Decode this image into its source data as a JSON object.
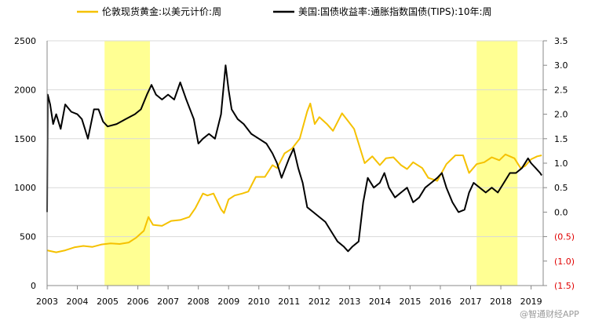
{
  "chart_data": {
    "type": "line",
    "title": "",
    "legend_placement": "top",
    "xlabel": "",
    "ylabel_left": "",
    "ylabel_right": "",
    "x_range": [
      2003,
      2019.4
    ],
    "y_left_range": [
      0,
      2500
    ],
    "y_right_range": [
      -1.5,
      3.5
    ],
    "x_tick_labels": [
      "2003",
      "2004",
      "2005",
      "2006",
      "2007",
      "2008",
      "2009",
      "2010",
      "2011",
      "2012",
      "2013",
      "2014",
      "2015",
      "2016",
      "2017",
      "2018",
      "2019"
    ],
    "y_left_tick_labels": [
      "0",
      "500",
      "1000",
      "1500",
      "2000",
      "2500"
    ],
    "y_right_tick_labels": [
      "(1.5)",
      "(1.0)",
      "(0.5)",
      "0.0",
      "0.5",
      "1.0",
      "1.5",
      "2.0",
      "2.5",
      "3.0",
      "3.5"
    ],
    "y_right_tick_values": [
      -1.5,
      -1.0,
      -0.5,
      0.0,
      0.5,
      1.0,
      1.5,
      2.0,
      2.5,
      3.0,
      3.5
    ],
    "shaded_periods": [
      {
        "start": 2004.9,
        "end": 2006.4
      },
      {
        "start": 2017.2,
        "end": 2018.55
      }
    ],
    "series": [
      {
        "name": "伦敦现货黄金:以美元计价:周",
        "axis": "left",
        "color": "#f5c100",
        "points": [
          [
            2003.0,
            360
          ],
          [
            2003.3,
            340
          ],
          [
            2003.6,
            360
          ],
          [
            2003.9,
            390
          ],
          [
            2004.2,
            405
          ],
          [
            2004.5,
            395
          ],
          [
            2004.8,
            420
          ],
          [
            2005.1,
            430
          ],
          [
            2005.4,
            425
          ],
          [
            2005.7,
            440
          ],
          [
            2005.95,
            490
          ],
          [
            2006.2,
            560
          ],
          [
            2006.35,
            700
          ],
          [
            2006.5,
            620
          ],
          [
            2006.8,
            610
          ],
          [
            2007.1,
            660
          ],
          [
            2007.4,
            670
          ],
          [
            2007.7,
            700
          ],
          [
            2007.9,
            790
          ],
          [
            2008.15,
            940
          ],
          [
            2008.3,
            920
          ],
          [
            2008.5,
            940
          ],
          [
            2008.75,
            780
          ],
          [
            2008.85,
            740
          ],
          [
            2009.0,
            880
          ],
          [
            2009.2,
            920
          ],
          [
            2009.45,
            940
          ],
          [
            2009.65,
            960
          ],
          [
            2009.9,
            1110
          ],
          [
            2010.2,
            1110
          ],
          [
            2010.45,
            1230
          ],
          [
            2010.6,
            1200
          ],
          [
            2010.85,
            1350
          ],
          [
            2011.1,
            1400
          ],
          [
            2011.35,
            1500
          ],
          [
            2011.6,
            1780
          ],
          [
            2011.7,
            1860
          ],
          [
            2011.85,
            1650
          ],
          [
            2012.0,
            1720
          ],
          [
            2012.25,
            1650
          ],
          [
            2012.45,
            1580
          ],
          [
            2012.75,
            1760
          ],
          [
            2012.95,
            1680
          ],
          [
            2013.15,
            1600
          ],
          [
            2013.3,
            1450
          ],
          [
            2013.5,
            1250
          ],
          [
            2013.75,
            1320
          ],
          [
            2014.0,
            1230
          ],
          [
            2014.2,
            1300
          ],
          [
            2014.45,
            1310
          ],
          [
            2014.7,
            1230
          ],
          [
            2014.9,
            1190
          ],
          [
            2015.1,
            1260
          ],
          [
            2015.4,
            1200
          ],
          [
            2015.6,
            1100
          ],
          [
            2015.9,
            1070
          ],
          [
            2016.2,
            1240
          ],
          [
            2016.5,
            1330
          ],
          [
            2016.75,
            1330
          ],
          [
            2016.95,
            1150
          ],
          [
            2017.2,
            1240
          ],
          [
            2017.45,
            1260
          ],
          [
            2017.7,
            1310
          ],
          [
            2017.95,
            1280
          ],
          [
            2018.15,
            1340
          ],
          [
            2018.45,
            1300
          ],
          [
            2018.65,
            1200
          ],
          [
            2018.8,
            1220
          ],
          [
            2019.0,
            1290
          ],
          [
            2019.2,
            1320
          ],
          [
            2019.35,
            1330
          ]
        ]
      },
      {
        "name": "美国:国债收益率:通胀指数国债(TIPS):10年:周",
        "axis": "right",
        "color": "#000000",
        "points": [
          [
            2003.0,
            0.0
          ],
          [
            2003.02,
            2.4
          ],
          [
            2003.1,
            2.2
          ],
          [
            2003.2,
            1.8
          ],
          [
            2003.3,
            2.0
          ],
          [
            2003.45,
            1.7
          ],
          [
            2003.6,
            2.2
          ],
          [
            2003.8,
            2.05
          ],
          [
            2004.0,
            2.0
          ],
          [
            2004.15,
            1.9
          ],
          [
            2004.25,
            1.7
          ],
          [
            2004.35,
            1.5
          ],
          [
            2004.55,
            2.1
          ],
          [
            2004.7,
            2.1
          ],
          [
            2004.85,
            1.85
          ],
          [
            2005.0,
            1.75
          ],
          [
            2005.3,
            1.8
          ],
          [
            2005.6,
            1.9
          ],
          [
            2005.9,
            2.0
          ],
          [
            2006.1,
            2.1
          ],
          [
            2006.3,
            2.4
          ],
          [
            2006.45,
            2.6
          ],
          [
            2006.6,
            2.4
          ],
          [
            2006.8,
            2.3
          ],
          [
            2007.0,
            2.4
          ],
          [
            2007.2,
            2.3
          ],
          [
            2007.4,
            2.65
          ],
          [
            2007.6,
            2.3
          ],
          [
            2007.85,
            1.9
          ],
          [
            2008.0,
            1.4
          ],
          [
            2008.15,
            1.5
          ],
          [
            2008.35,
            1.6
          ],
          [
            2008.55,
            1.5
          ],
          [
            2008.75,
            2.0
          ],
          [
            2008.9,
            3.0
          ],
          [
            2009.0,
            2.5
          ],
          [
            2009.1,
            2.1
          ],
          [
            2009.3,
            1.9
          ],
          [
            2009.5,
            1.8
          ],
          [
            2009.75,
            1.6
          ],
          [
            2010.0,
            1.5
          ],
          [
            2010.25,
            1.4
          ],
          [
            2010.45,
            1.2
          ],
          [
            2010.6,
            1.0
          ],
          [
            2010.75,
            0.7
          ],
          [
            2011.0,
            1.1
          ],
          [
            2011.15,
            1.3
          ],
          [
            2011.3,
            0.9
          ],
          [
            2011.45,
            0.6
          ],
          [
            2011.6,
            0.1
          ],
          [
            2011.8,
            0.0
          ],
          [
            2012.0,
            -0.1
          ],
          [
            2012.2,
            -0.2
          ],
          [
            2012.4,
            -0.4
          ],
          [
            2012.6,
            -0.6
          ],
          [
            2012.8,
            -0.7
          ],
          [
            2012.95,
            -0.8
          ],
          [
            2013.1,
            -0.7
          ],
          [
            2013.3,
            -0.6
          ],
          [
            2013.45,
            0.2
          ],
          [
            2013.6,
            0.7
          ],
          [
            2013.8,
            0.5
          ],
          [
            2014.0,
            0.6
          ],
          [
            2014.15,
            0.8
          ],
          [
            2014.3,
            0.5
          ],
          [
            2014.5,
            0.3
          ],
          [
            2014.7,
            0.4
          ],
          [
            2014.9,
            0.5
          ],
          [
            2015.1,
            0.2
          ],
          [
            2015.3,
            0.3
          ],
          [
            2015.5,
            0.5
          ],
          [
            2015.7,
            0.6
          ],
          [
            2015.9,
            0.7
          ],
          [
            2016.05,
            0.8
          ],
          [
            2016.2,
            0.5
          ],
          [
            2016.4,
            0.2
          ],
          [
            2016.6,
            0.0
          ],
          [
            2016.8,
            0.05
          ],
          [
            2016.95,
            0.4
          ],
          [
            2017.1,
            0.6
          ],
          [
            2017.3,
            0.5
          ],
          [
            2017.5,
            0.4
          ],
          [
            2017.7,
            0.5
          ],
          [
            2017.9,
            0.4
          ],
          [
            2018.1,
            0.6
          ],
          [
            2018.3,
            0.8
          ],
          [
            2018.5,
            0.8
          ],
          [
            2018.7,
            0.9
          ],
          [
            2018.9,
            1.1
          ],
          [
            2019.0,
            1.0
          ],
          [
            2019.15,
            0.9
          ],
          [
            2019.3,
            0.8
          ],
          [
            2019.35,
            0.75
          ]
        ]
      }
    ]
  },
  "watermark": "@智通财经APP"
}
